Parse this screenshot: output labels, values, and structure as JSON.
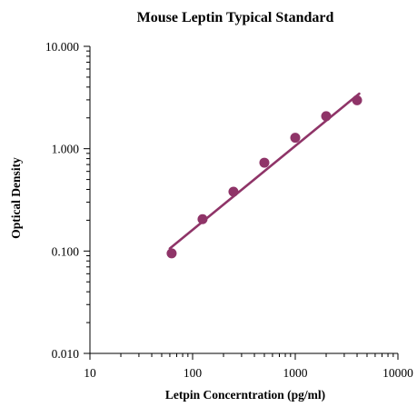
{
  "chart_data": {
    "type": "scatter",
    "title": "Mouse Leptin Typical Standard",
    "xlabel": "Letpin Concerntration (pg/ml)",
    "ylabel": "Optical Density",
    "x_scale": "log",
    "y_scale": "log",
    "xlim": [
      10,
      10000
    ],
    "ylim": [
      0.01,
      10
    ],
    "x_ticks": [
      10,
      100,
      1000,
      10000
    ],
    "x_tick_labels": [
      "10",
      "100",
      "1000",
      "10000"
    ],
    "y_ticks": [
      0.01,
      0.1,
      1,
      10
    ],
    "y_tick_labels": [
      "0.010",
      "0.100",
      "1.000",
      "10.000"
    ],
    "grid": false,
    "legend": "none",
    "colors": {
      "series": "#8f3468",
      "axis": "#000000"
    },
    "series": [
      {
        "points": [
          {
            "x": 62.5,
            "y": 0.095
          },
          {
            "x": 125,
            "y": 0.205
          },
          {
            "x": 250,
            "y": 0.38
          },
          {
            "x": 500,
            "y": 0.73
          },
          {
            "x": 1000,
            "y": 1.28
          },
          {
            "x": 2000,
            "y": 2.08
          },
          {
            "x": 4000,
            "y": 2.97
          }
        ],
        "fit": {
          "x_start": 60,
          "y_start": 0.106,
          "x_end": 4200,
          "y_end": 3.45
        }
      }
    ]
  }
}
